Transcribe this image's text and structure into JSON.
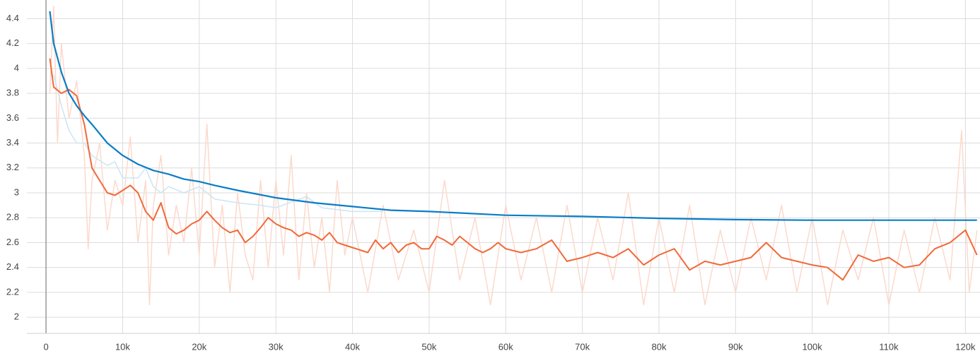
{
  "chart_data": {
    "type": "line",
    "xlim": [
      -2500,
      121900
    ],
    "ylim": [
      1.87,
      4.55
    ],
    "xticks": [
      {
        "value": 0,
        "label": "0"
      },
      {
        "value": 10000,
        "label": "10k"
      },
      {
        "value": 20000,
        "label": "20k"
      },
      {
        "value": 30000,
        "label": "30k"
      },
      {
        "value": 40000,
        "label": "40k"
      },
      {
        "value": 50000,
        "label": "50k"
      },
      {
        "value": 60000,
        "label": "60k"
      },
      {
        "value": 70000,
        "label": "70k"
      },
      {
        "value": 80000,
        "label": "80k"
      },
      {
        "value": 90000,
        "label": "90k"
      },
      {
        "value": 100000,
        "label": "100k"
      },
      {
        "value": 110000,
        "label": "110k"
      },
      {
        "value": 120000,
        "label": "120k"
      }
    ],
    "yticks": [
      2,
      2.2,
      2.4,
      2.6,
      2.8,
      3,
      3.2,
      3.4,
      3.6,
      3.8,
      4,
      4.2,
      4.4
    ],
    "grid": true,
    "series": [
      {
        "color": "#fcd9cc",
        "width": 1.5,
        "x": [
          500,
          1000,
          1500,
          2000,
          3000,
          4000,
          5000,
          5500,
          6000,
          7000,
          8000,
          9000,
          10000,
          11000,
          12000,
          13000,
          13500,
          14000,
          15000,
          16000,
          17000,
          18000,
          19000,
          20000,
          21000,
          22000,
          23000,
          24000,
          25000,
          26000,
          27000,
          28000,
          29000,
          30000,
          31000,
          32000,
          33000,
          34000,
          35000,
          36000,
          37000,
          38000,
          39000,
          40000,
          42000,
          44000,
          46000,
          48000,
          50000,
          52000,
          54000,
          56000,
          58000,
          60000,
          62000,
          64000,
          66000,
          68000,
          70000,
          72000,
          74000,
          76000,
          78000,
          80000,
          82000,
          84000,
          86000,
          88000,
          90000,
          92000,
          94000,
          96000,
          98000,
          100000,
          102000,
          104000,
          106000,
          108000,
          110000,
          112000,
          114000,
          116000,
          118000,
          119500,
          120500,
          121500
        ],
        "values": [
          3.8,
          4.5,
          3.4,
          4.2,
          3.6,
          3.9,
          3.3,
          2.55,
          3.1,
          3.4,
          2.7,
          3.1,
          2.9,
          3.45,
          2.6,
          3.1,
          2.1,
          2.9,
          3.3,
          2.5,
          2.9,
          2.6,
          3.2,
          2.5,
          3.55,
          2.4,
          2.9,
          2.2,
          3.0,
          2.5,
          2.3,
          3.1,
          2.4,
          3.1,
          2.5,
          3.3,
          2.3,
          3.0,
          2.4,
          2.8,
          2.2,
          3.1,
          2.5,
          2.8,
          2.2,
          2.9,
          2.3,
          2.7,
          2.2,
          3.1,
          2.3,
          2.8,
          2.1,
          2.9,
          2.3,
          2.8,
          2.2,
          2.9,
          2.2,
          2.8,
          2.3,
          3.0,
          2.1,
          2.8,
          2.2,
          2.9,
          2.1,
          2.7,
          2.2,
          2.8,
          2.3,
          2.9,
          2.2,
          2.8,
          2.1,
          2.7,
          2.3,
          2.8,
          2.1,
          2.7,
          2.2,
          2.8,
          2.3,
          3.5,
          2.2,
          2.7
        ]
      },
      {
        "color": "#c9e6f5",
        "width": 1.5,
        "x": [
          1000,
          2000,
          3000,
          4000,
          5000,
          6000,
          8000,
          9000,
          10000,
          12000,
          13000,
          14000,
          15000,
          16000,
          18000,
          20000,
          22000,
          25000,
          28000,
          30000,
          34000,
          36000,
          40000,
          44000
        ],
        "values": [
          3.95,
          3.7,
          3.5,
          3.4,
          3.4,
          3.3,
          3.22,
          3.25,
          3.12,
          3.12,
          3.2,
          3.05,
          3.0,
          3.05,
          3.0,
          3.05,
          2.95,
          2.92,
          2.9,
          2.88,
          2.97,
          2.88,
          2.85,
          2.85
        ]
      },
      {
        "color": "#f0693a",
        "width": 2,
        "x": [
          500,
          1000,
          2000,
          3000,
          4000,
          5000,
          6000,
          7000,
          8000,
          9000,
          10000,
          11000,
          12000,
          13000,
          14000,
          15000,
          16000,
          17000,
          18000,
          19000,
          20000,
          21000,
          22000,
          23000,
          24000,
          25000,
          26000,
          27000,
          28000,
          29000,
          30000,
          31000,
          32000,
          33000,
          34000,
          35000,
          36000,
          37000,
          38000,
          39000,
          40000,
          41000,
          42000,
          43000,
          44000,
          45000,
          46000,
          47000,
          48000,
          49000,
          50000,
          51000,
          52000,
          53000,
          54000,
          55000,
          56000,
          57000,
          58000,
          59000,
          60000,
          62000,
          64000,
          66000,
          68000,
          70000,
          72000,
          74000,
          76000,
          78000,
          80000,
          82000,
          84000,
          86000,
          88000,
          90000,
          92000,
          94000,
          96000,
          98000,
          100000,
          102000,
          104000,
          106000,
          108000,
          110000,
          112000,
          114000,
          116000,
          118000,
          120000,
          121500
        ],
        "values": [
          4.08,
          3.85,
          3.8,
          3.83,
          3.78,
          3.55,
          3.2,
          3.1,
          3.0,
          2.98,
          3.02,
          3.06,
          3.0,
          2.85,
          2.78,
          2.92,
          2.72,
          2.67,
          2.7,
          2.75,
          2.78,
          2.85,
          2.78,
          2.72,
          2.68,
          2.7,
          2.6,
          2.65,
          2.72,
          2.8,
          2.75,
          2.72,
          2.7,
          2.65,
          2.68,
          2.66,
          2.62,
          2.68,
          2.6,
          2.58,
          2.56,
          2.54,
          2.52,
          2.62,
          2.55,
          2.6,
          2.52,
          2.58,
          2.6,
          2.55,
          2.55,
          2.65,
          2.62,
          2.58,
          2.65,
          2.6,
          2.55,
          2.52,
          2.55,
          2.6,
          2.55,
          2.52,
          2.55,
          2.62,
          2.45,
          2.48,
          2.52,
          2.48,
          2.55,
          2.42,
          2.5,
          2.55,
          2.38,
          2.45,
          2.42,
          2.45,
          2.48,
          2.6,
          2.48,
          2.45,
          2.42,
          2.4,
          2.3,
          2.5,
          2.45,
          2.48,
          2.4,
          2.42,
          2.55,
          2.6,
          2.7,
          2.5
        ]
      },
      {
        "color": "#0a7dc6",
        "width": 2.2,
        "x": [
          500,
          1000,
          2000,
          3000,
          4000,
          5000,
          6000,
          8000,
          10000,
          12000,
          14000,
          16000,
          18000,
          20000,
          22000,
          25000,
          30000,
          35000,
          40000,
          45000,
          50000,
          60000,
          70000,
          80000,
          90000,
          100000,
          110000,
          121500
        ],
        "values": [
          4.46,
          4.2,
          3.97,
          3.8,
          3.7,
          3.62,
          3.55,
          3.4,
          3.3,
          3.23,
          3.18,
          3.15,
          3.11,
          3.09,
          3.06,
          3.02,
          2.96,
          2.92,
          2.89,
          2.86,
          2.85,
          2.82,
          2.81,
          2.795,
          2.785,
          2.78,
          2.78,
          2.78
        ]
      }
    ]
  }
}
